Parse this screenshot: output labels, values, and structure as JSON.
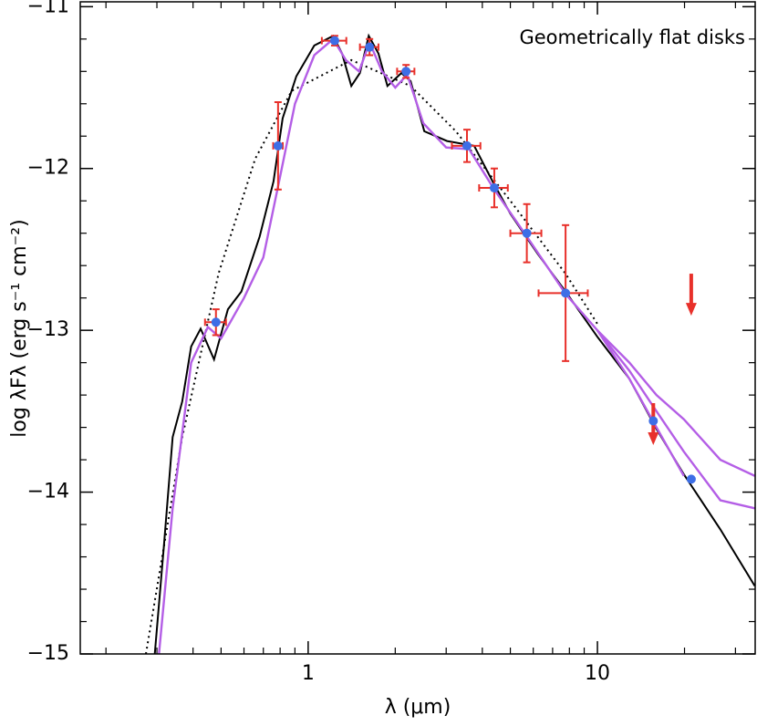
{
  "chart_data": {
    "type": "sed",
    "annotation": "Geometrically flat disks",
    "xlabel": "λ (μm)",
    "ylabel": "log λFλ (erg s⁻¹ cm⁻²)",
    "xscale": "log",
    "xlim": [
      0.163,
      35.1
    ],
    "ylim": [
      -15,
      -10.97
    ],
    "xticks": [
      1,
      10
    ],
    "xminor": [
      0.2,
      0.3,
      0.4,
      0.5,
      0.6,
      0.7,
      0.8,
      0.9,
      2,
      3,
      4,
      5,
      6,
      7,
      8,
      9,
      20,
      30
    ],
    "yticks": [
      {
        "value": -11,
        "label": "−11"
      },
      {
        "value": -12,
        "label": "−12"
      },
      {
        "value": -13,
        "label": "−13"
      },
      {
        "value": -14,
        "label": "−14"
      },
      {
        "value": -15,
        "label": "−15"
      }
    ],
    "yminor": [
      -11.2,
      -11.4,
      -11.6,
      -11.8,
      -12.2,
      -12.4,
      -12.6,
      -12.8,
      -13.2,
      -13.4,
      -13.6,
      -13.8,
      -14.2,
      -14.4,
      -14.6,
      -14.8
    ],
    "curves": [
      {
        "style": "dotted",
        "color": "#000000",
        "x": [
          0.275,
          0.367,
          0.49,
          0.656,
          0.877,
          1.41,
          2.26,
          3.24,
          5.0,
          7.76,
          10.0
        ],
        "values": [
          -15.0,
          -13.66,
          -12.65,
          -11.94,
          -11.52,
          -11.33,
          -11.49,
          -11.77,
          -12.2,
          -12.65,
          -12.96
        ]
      },
      {
        "style": "solid",
        "color": "#000000",
        "x": [
          0.295,
          0.317,
          0.34,
          0.367,
          0.394,
          0.425,
          0.473,
          0.528,
          0.588,
          0.68,
          0.759,
          0.816,
          0.91,
          1.05,
          1.22,
          1.31,
          1.41,
          1.51,
          1.62,
          1.75,
          1.88,
          2.1,
          2.26,
          2.52,
          3.02,
          3.75,
          4.34,
          5.0,
          6.23,
          7.76,
          10.0,
          12.9,
          16.0,
          19.9,
          26.6,
          35.0
        ],
        "values": [
          -15.0,
          -14.34,
          -13.66,
          -13.44,
          -13.1,
          -12.99,
          -13.18,
          -12.87,
          -12.76,
          -12.42,
          -12.08,
          -11.69,
          -11.43,
          -11.24,
          -11.18,
          -11.29,
          -11.49,
          -11.41,
          -11.18,
          -11.29,
          -11.49,
          -11.41,
          -11.46,
          -11.77,
          -11.83,
          -11.86,
          -12.08,
          -12.28,
          -12.53,
          -12.76,
          -13.04,
          -13.3,
          -13.61,
          -13.89,
          -14.23,
          -14.58
        ]
      },
      {
        "style": "solid",
        "color": "#b45ee6",
        "x": [
          0.305,
          0.34,
          0.394,
          0.45,
          0.5,
          0.6,
          0.7,
          0.8,
          0.9,
          1.05,
          1.22,
          1.35,
          1.5,
          1.63,
          1.8,
          2.0,
          2.2,
          2.5,
          3.0,
          3.6,
          4.4,
          5.7,
          7.8,
          10.0,
          12.9,
          16.0,
          19.9
        ],
        "values": [
          -15.0,
          -14.1,
          -13.2,
          -12.98,
          -13.05,
          -12.8,
          -12.55,
          -12.05,
          -11.6,
          -11.3,
          -11.2,
          -11.33,
          -11.4,
          -11.22,
          -11.4,
          -11.5,
          -11.42,
          -11.72,
          -11.87,
          -11.88,
          -12.13,
          -12.42,
          -12.78,
          -13.0,
          -13.3,
          -13.6,
          -13.9
        ]
      },
      {
        "style": "solid",
        "color": "#b45ee6",
        "x": [
          10.0,
          12.9,
          16.0,
          19.9,
          26.6,
          35.0
        ],
        "values": [
          -13.0,
          -13.2,
          -13.4,
          -13.55,
          -13.8,
          -13.9
        ]
      },
      {
        "style": "solid",
        "color": "#b45ee6",
        "x": [
          10.0,
          12.9,
          16.0,
          19.9,
          26.6,
          35.0
        ],
        "values": [
          -13.0,
          -13.25,
          -13.5,
          -13.75,
          -14.05,
          -14.1
        ]
      }
    ],
    "points": {
      "color": "#3d6ee6",
      "errcolor": "#e8302a",
      "x": [
        0.48,
        0.787,
        1.235,
        1.63,
        2.18,
        3.54,
        4.4,
        5.7,
        7.76,
        15.6,
        21.1
      ],
      "values": [
        -12.95,
        -11.86,
        -11.21,
        -11.25,
        -11.4,
        -11.86,
        -12.12,
        -12.4,
        -12.77,
        -13.56,
        -13.92
      ],
      "yerr": [
        0.08,
        0.27,
        0.03,
        0.05,
        0.04,
        0.1,
        0.12,
        0.18,
        0.42,
        null,
        null
      ],
      "xerr": [
        0.04,
        0.03,
        0.12,
        0.12,
        0.15,
        0.4,
        0.5,
        0.7,
        1.5,
        null,
        null
      ]
    },
    "upper_limits": {
      "color": "#e8302a",
      "x": [
        21.1,
        15.6
      ],
      "values": [
        -12.65,
        -13.45
      ]
    }
  }
}
